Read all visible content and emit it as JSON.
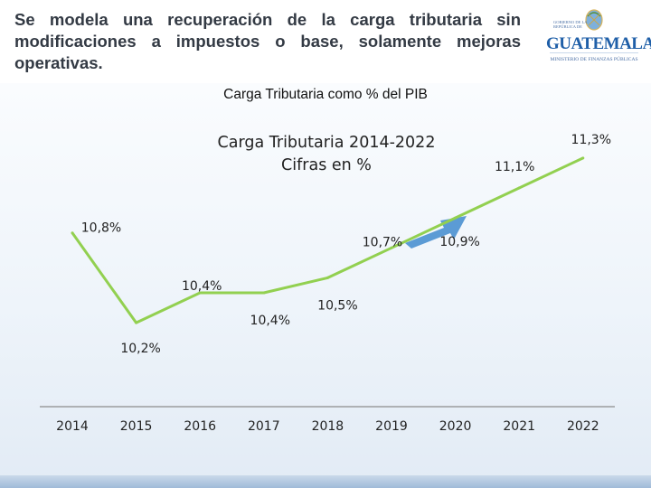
{
  "slide": {
    "headline": "Se modela una recuperación de la carga tributaria sin modificaciones a impuestos o base, solamente mejoras operativas.",
    "subtitle": "Carga Tributaria como % del PIB"
  },
  "logo": {
    "icon": "guatemala-coat-of-arms-icon",
    "wordmark": "GUATEMALA",
    "topline": "GOBIERNO DE LA REPÚBLICA DE",
    "ministry": "MINISTERIO DE FINANZAS PÚBLICAS"
  },
  "colors": {
    "line": "#92d050",
    "arrow": "#5b9bd5",
    "axis": "#8c8c8c"
  },
  "chart_data": {
    "type": "line",
    "title": [
      "Carga Tributaria 2014-2022",
      "Cifras en %"
    ],
    "categories": [
      "2014",
      "2015",
      "2016",
      "2017",
      "2018",
      "2019",
      "2020",
      "2021",
      "2022"
    ],
    "series": [
      {
        "values": [
          10.8,
          10.2,
          10.4,
          10.4,
          10.5,
          10.7,
          10.9,
          11.1,
          11.3
        ]
      }
    ],
    "data_labels": [
      "10,8%",
      "10,2%",
      "10,4%",
      "10,4%",
      "10,5%",
      "10,7%",
      "10,9%",
      "11,1%",
      "11,3%"
    ],
    "ylim": [
      10.05,
      11.45
    ],
    "grid": false,
    "legend": "none",
    "annotation": "upward-trend-arrow"
  }
}
